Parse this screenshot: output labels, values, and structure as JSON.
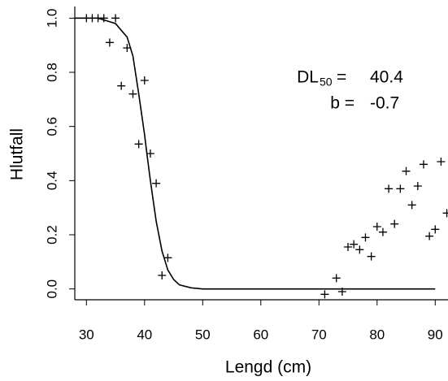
{
  "chart_data": {
    "type": "scatter",
    "xlabel": "Lengd (cm)",
    "ylabel": "Hlutfall",
    "x": [
      30,
      31,
      32,
      33,
      35,
      34,
      36,
      37,
      38,
      40,
      39,
      41,
      42,
      43,
      44,
      71,
      73,
      74,
      75,
      76,
      77,
      78,
      79,
      80,
      81,
      82,
      83,
      84,
      85,
      86,
      87,
      88,
      89,
      90,
      91,
      92
    ],
    "values": [
      1.0,
      1.0,
      1.0,
      1.0,
      1.0,
      0.91,
      0.75,
      0.89,
      0.72,
      0.77,
      0.535,
      0.5,
      0.39,
      0.05,
      0.115,
      -0.02,
      0.04,
      -0.01,
      0.155,
      0.165,
      0.145,
      0.19,
      0.12,
      0.23,
      0.21,
      0.37,
      0.24,
      0.37,
      0.435,
      0.31,
      0.38,
      0.46,
      0.195,
      0.22,
      0.47,
      0.28
    ],
    "curve": {
      "x": [
        28,
        32,
        35,
        37,
        38,
        39,
        40,
        40.4,
        41,
        42,
        43,
        44,
        45,
        46,
        48,
        50,
        90
      ],
      "values": [
        1.0,
        1.0,
        0.98,
        0.93,
        0.86,
        0.72,
        0.57,
        0.5,
        0.4,
        0.25,
        0.14,
        0.07,
        0.035,
        0.015,
        0.004,
        0,
        0
      ]
    },
    "xlim": [
      28,
      92.2
    ],
    "ylim": [
      -0.04,
      1.04
    ],
    "xticks": [
      30,
      40,
      50,
      60,
      70,
      80,
      90
    ],
    "yticks": [
      {
        "value": 0,
        "label": "0.0"
      },
      0.2,
      0.4,
      0.6,
      0.8,
      {
        "value": 1,
        "label": "1.0"
      }
    ],
    "annotations": {
      "dl": "DL",
      "sub": "50",
      "eq": "=",
      "dl_value": "40.4",
      "b": "b =",
      "b_value": "-0.7"
    }
  }
}
